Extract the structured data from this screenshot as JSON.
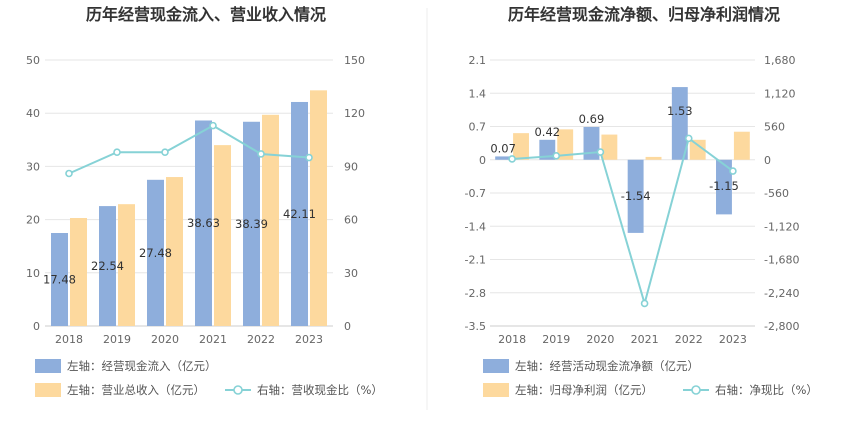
{
  "colors": {
    "bar_primary": "#8eaedc",
    "bar_secondary": "#fdd99e",
    "line": "#86d2d6",
    "grid": "#e6e6e6",
    "axis_text": "#666666",
    "title": "#333333",
    "divider": "#eeeeee"
  },
  "chart_data": [
    {
      "type": "bar",
      "title": "历年经营现金流入、营业收入情况",
      "categories": [
        "2018",
        "2019",
        "2020",
        "2021",
        "2022",
        "2023"
      ],
      "y_left": {
        "ticks": [
          "0",
          "10",
          "20",
          "30",
          "40",
          "50"
        ],
        "ylim": [
          0,
          50
        ]
      },
      "y_right": {
        "ticks": [
          "0",
          "30",
          "60",
          "90",
          "120",
          "150"
        ],
        "ylim": [
          0,
          150
        ]
      },
      "series": [
        {
          "name": "左轴：经营现金流入（亿元）",
          "axis": "left",
          "kind": "bar",
          "values": [
            17.48,
            22.54,
            27.48,
            38.63,
            38.39,
            42.11
          ],
          "labels": [
            "17.48",
            "22.54",
            "27.48",
            "38.63",
            "38.39",
            "42.11"
          ]
        },
        {
          "name": "左轴：营业总收入（亿元）",
          "axis": "left",
          "kind": "bar",
          "values": [
            20.3,
            22.9,
            28.0,
            34.0,
            39.7,
            44.3
          ]
        },
        {
          "name": "右轴：营收现金比（%）",
          "axis": "right",
          "kind": "line",
          "values": [
            86,
            98,
            98,
            113,
            97,
            95
          ]
        }
      ],
      "legend_position": "bottom-left",
      "grid": true
    },
    {
      "type": "bar",
      "title": "历年经营现金流净额、归母净利润情况",
      "categories": [
        "2018",
        "2019",
        "2020",
        "2021",
        "2022",
        "2023"
      ],
      "y_left": {
        "ticks": [
          "-3.5",
          "-2.8",
          "-2.1",
          "-1.4",
          "-0.7",
          "0",
          "0.7",
          "1.4",
          "2.1"
        ],
        "ylim": [
          -3.5,
          2.1
        ]
      },
      "y_right": {
        "ticks": [
          "-2,800",
          "-2,240",
          "-1,680",
          "-1,120",
          "-560",
          "0",
          "560",
          "1,120",
          "1,680"
        ],
        "ylim": [
          -2800,
          1680
        ]
      },
      "series": [
        {
          "name": "左轴：经营活动现金流净额（亿元）",
          "axis": "left",
          "kind": "bar",
          "values": [
            0.07,
            0.42,
            0.69,
            -1.54,
            1.53,
            -1.15
          ],
          "labels": [
            "0.07",
            "0.42",
            "0.69",
            "-1.54",
            "1.53",
            "-1.15"
          ]
        },
        {
          "name": "左轴：归母净利润（亿元）",
          "axis": "left",
          "kind": "bar",
          "values": [
            0.56,
            0.64,
            0.53,
            0.06,
            0.42,
            0.59
          ]
        },
        {
          "name": "右轴：净现比（%）",
          "axis": "right",
          "kind": "line",
          "values": [
            13,
            66,
            130,
            -2420,
            360,
            -190
          ]
        }
      ],
      "legend_position": "bottom-left",
      "grid": true
    }
  ]
}
